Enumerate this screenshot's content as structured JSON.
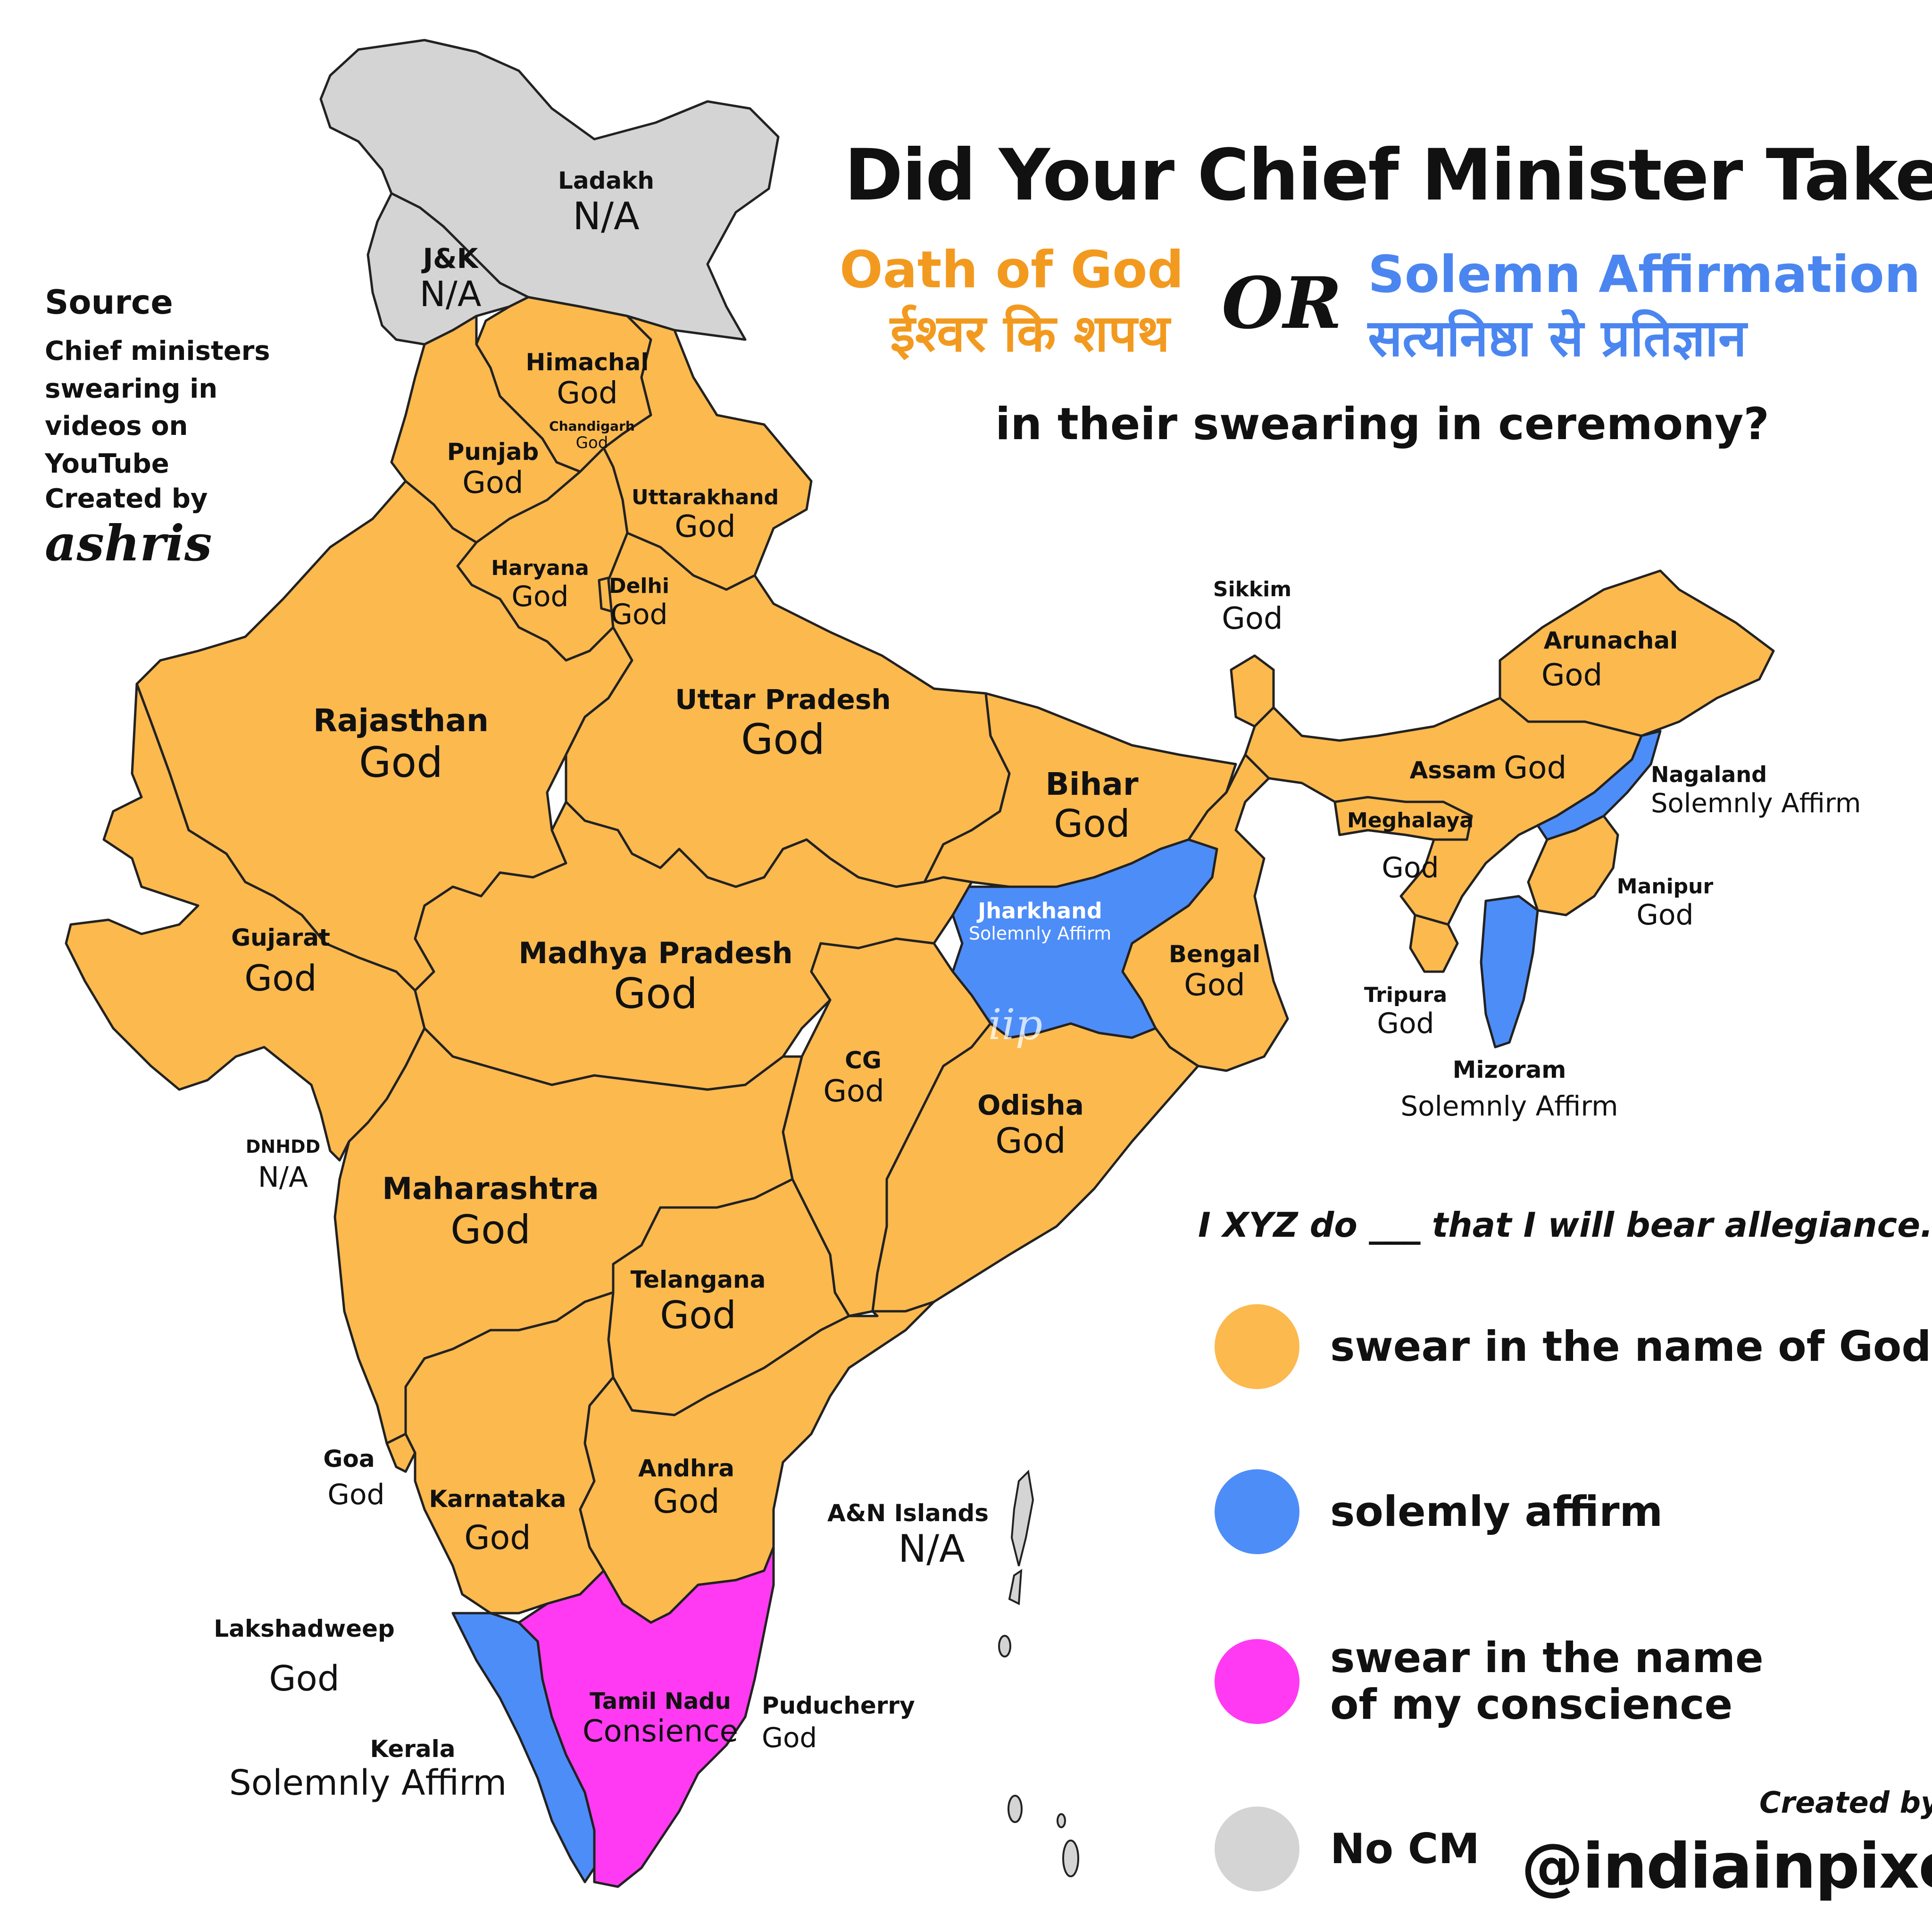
{
  "title": "Did Your Chief Minister Take",
  "option_god": {
    "en": "Oath of God",
    "hi": "ईश्वर कि शपथ"
  },
  "or_text": "OR",
  "option_affirm": {
    "en": "Solemn Affirmation",
    "hi": "सत्यनिष्ठा से प्रतिज्ञान"
  },
  "subtitle": "in their swearing in ceremony?",
  "source": {
    "heading": "Source",
    "text": "Chief ministers swearing in videos on YouTube",
    "created_label": "Created by",
    "author": "ashris"
  },
  "oath_text": "I XYZ do ___ that I will bear allegiance....",
  "legend": [
    {
      "label": "swear in the name of God",
      "color": "#FBB94E"
    },
    {
      "label": "solemly affirm",
      "color": "#4D8DF8"
    },
    {
      "label": "swear in the name of my conscience",
      "color": "#FF3AF2"
    },
    {
      "label": "No CM",
      "color": "#D4D4D4"
    }
  ],
  "credit": {
    "label": "Created by",
    "handle": "@indiainpixels"
  },
  "watermark": "iip",
  "colors": {
    "god": "#FBB94E",
    "affirm": "#4D8DF8",
    "conscience": "#FF3AF2",
    "nocm": "#D4D4D4",
    "title_god": "#F29A1F",
    "title_affirm": "#4B86F0",
    "border": "#222222"
  },
  "regions": {
    "ladakh": {
      "name": "Ladakh",
      "value": "N/A"
    },
    "jk": {
      "name": "J&K",
      "value": "N/A"
    },
    "himachal": {
      "name": "Himachal",
      "value": "God"
    },
    "chandigarh": {
      "name": "Chandigarh",
      "value": "God"
    },
    "punjab": {
      "name": "Punjab",
      "value": "God"
    },
    "uttarakhand": {
      "name": "Uttarakhand",
      "value": "God"
    },
    "haryana": {
      "name": "Haryana",
      "value": "God"
    },
    "delhi": {
      "name": "Delhi",
      "value": "God"
    },
    "rajasthan": {
      "name": "Rajasthan",
      "value": "God"
    },
    "uttar_pradesh": {
      "name": "Uttar Pradesh",
      "value": "God"
    },
    "bihar": {
      "name": "Bihar",
      "value": "God"
    },
    "sikkim": {
      "name": "Sikkim",
      "value": "God"
    },
    "arunachal": {
      "name": "Arunachal",
      "value": "God"
    },
    "assam": {
      "name": "Assam",
      "value": "God"
    },
    "nagaland": {
      "name": "Nagaland",
      "value": "Solemnly Affirm"
    },
    "meghalaya": {
      "name": "Meghalaya",
      "value": "God"
    },
    "manipur": {
      "name": "Manipur",
      "value": "God"
    },
    "jharkhand": {
      "name": "Jharkhand",
      "value": "Solemnly Affirm"
    },
    "bengal": {
      "name": "Bengal",
      "value": "God"
    },
    "tripura": {
      "name": "Tripura",
      "value": "God"
    },
    "mizoram": {
      "name": "Mizoram",
      "value": "Solemnly Affirm"
    },
    "gujarat": {
      "name": "Gujarat",
      "value": "God"
    },
    "madhya_pradesh": {
      "name": "Madhya Pradesh",
      "value": "God"
    },
    "cg": {
      "name": "CG",
      "value": "God"
    },
    "odisha": {
      "name": "Odisha",
      "value": "God"
    },
    "dnhdd": {
      "name": "DNHDD",
      "value": "N/A"
    },
    "maharashtra": {
      "name": "Maharashtra",
      "value": "God"
    },
    "telangana": {
      "name": "Telangana",
      "value": "God"
    },
    "goa": {
      "name": "Goa",
      "value": "God"
    },
    "karnataka": {
      "name": "Karnataka",
      "value": "God"
    },
    "andhra": {
      "name": "Andhra",
      "value": "God"
    },
    "an_islands": {
      "name": "A&N Islands",
      "value": "N/A"
    },
    "lakshadweep": {
      "name": "Lakshadweep",
      "value": "God"
    },
    "tamil_nadu": {
      "name": "Tamil Nadu",
      "value": "Consience"
    },
    "puducherry": {
      "name": "Puducherry",
      "value": "God"
    },
    "kerala": {
      "name": "Kerala",
      "value": "Solemnly Affirm"
    }
  }
}
